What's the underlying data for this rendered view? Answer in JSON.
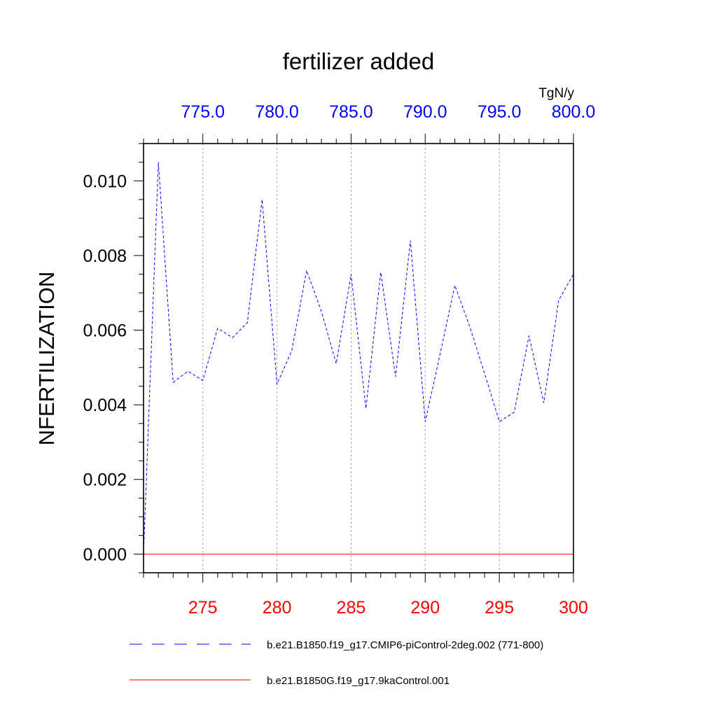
{
  "chart_data": {
    "type": "line",
    "title": "fertilizer added",
    "ylabel": "NFERTILIZATION",
    "units": "TgN/y",
    "ylim": [
      -0.0005,
      0.011
    ],
    "yticks": [
      0.0,
      0.002,
      0.004,
      0.006,
      0.008,
      0.01
    ],
    "ytick_labels": [
      "0.000",
      "0.002",
      "0.004",
      "0.006",
      "0.008",
      "0.010"
    ],
    "bottom_axis": {
      "xlim": [
        271,
        300
      ],
      "ticks": [
        275,
        280,
        285,
        290,
        295,
        300
      ],
      "tick_labels": [
        "275",
        "280",
        "285",
        "290",
        "295",
        "300"
      ],
      "color": "#ff0000"
    },
    "top_axis": {
      "xlim": [
        771,
        800
      ],
      "ticks": [
        775,
        780,
        785,
        790,
        795,
        800
      ],
      "tick_labels": [
        "775.0",
        "780.0",
        "785.0",
        "790.0",
        "795.0",
        "800.0"
      ],
      "color": "#0000ff"
    },
    "grid": "vertical dashed at major x ticks",
    "series": [
      {
        "name": "b.e21.B1850.f19_g17.CMIP6-piControl-2deg.002 (771-800)",
        "color": "#0000ff",
        "style": "dashed",
        "x": [
          771,
          772,
          773,
          774,
          775,
          776,
          777,
          778,
          779,
          780,
          781,
          782,
          783,
          784,
          785,
          786,
          787,
          788,
          789,
          790,
          791,
          792,
          793,
          794,
          795,
          796,
          797,
          798,
          799,
          800
        ],
        "values": [
          0.0,
          0.0105,
          0.0046,
          0.0049,
          0.00465,
          0.00605,
          0.0058,
          0.0062,
          0.0095,
          0.00455,
          0.00545,
          0.0076,
          0.0065,
          0.0051,
          0.0075,
          0.0039,
          0.00755,
          0.00475,
          0.0084,
          0.00355,
          0.00535,
          0.0072,
          0.0061,
          0.00485,
          0.00355,
          0.0038,
          0.00585,
          0.00405,
          0.0068,
          0.0075
        ]
      },
      {
        "name": "b.e21.B1850G.f19_g17.9kaControl.001",
        "color": "#ff0000",
        "style": "solid",
        "x": [
          271,
          300
        ],
        "values": [
          0.0,
          0.0
        ]
      }
    ],
    "legend": [
      {
        "label": "b.e21.B1850.f19_g17.CMIP6-piControl-2deg.002 (771-800)",
        "color": "#0000ff",
        "style": "dashed"
      },
      {
        "label": "b.e21.B1850G.f19_g17.9kaControl.001",
        "color": "#ff0000",
        "style": "solid"
      }
    ],
    "legend_position": "bottom"
  }
}
